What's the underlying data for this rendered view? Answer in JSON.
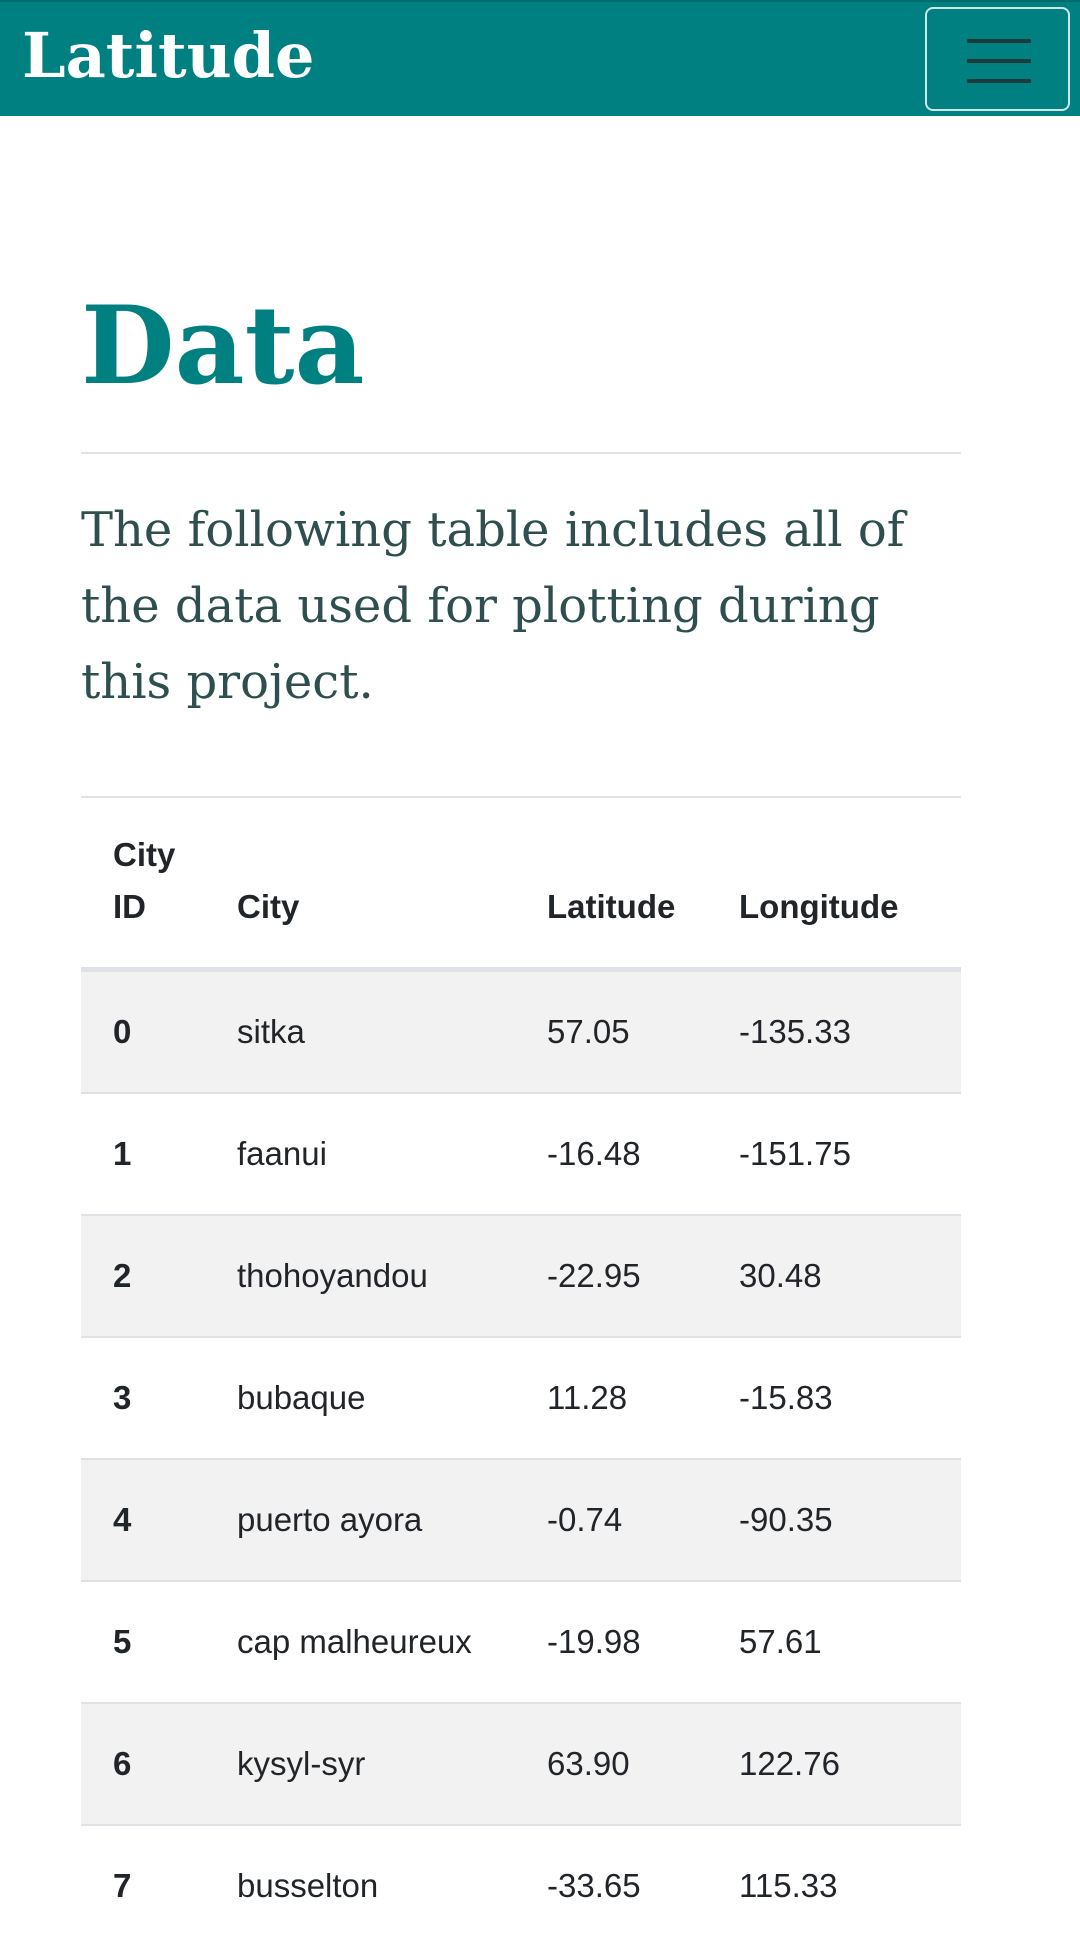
{
  "navbar": {
    "brand": "Latitude",
    "toggler_icon": "hamburger-menu-icon"
  },
  "page": {
    "title": "Data",
    "lead": "The following table includes all of the data used for plotting during this project."
  },
  "table": {
    "headers": {
      "id": "City ID",
      "city": "City",
      "lat": "Latitude",
      "lon": "Longitude"
    },
    "rows": [
      {
        "id": "0",
        "city": "sitka",
        "lat": "57.05",
        "lon": "-135.33"
      },
      {
        "id": "1",
        "city": "faanui",
        "lat": "-16.48",
        "lon": "-151.75"
      },
      {
        "id": "2",
        "city": "thohoyandou",
        "lat": "-22.95",
        "lon": "30.48"
      },
      {
        "id": "3",
        "city": "bubaque",
        "lat": "11.28",
        "lon": "-15.83"
      },
      {
        "id": "4",
        "city": "puerto ayora",
        "lat": "-0.74",
        "lon": "-90.35"
      },
      {
        "id": "5",
        "city": "cap malheureux",
        "lat": "-19.98",
        "lon": "57.61"
      },
      {
        "id": "6",
        "city": "kysyl-syr",
        "lat": "63.90",
        "lon": "122.76"
      },
      {
        "id": "7",
        "city": "busselton",
        "lat": "-33.65",
        "lon": "115.33"
      }
    ]
  },
  "colors": {
    "brand_teal": "#008080",
    "text_dark": "#212529",
    "lead_text": "#2f4f4f",
    "stripe": "#f2f2f2"
  }
}
